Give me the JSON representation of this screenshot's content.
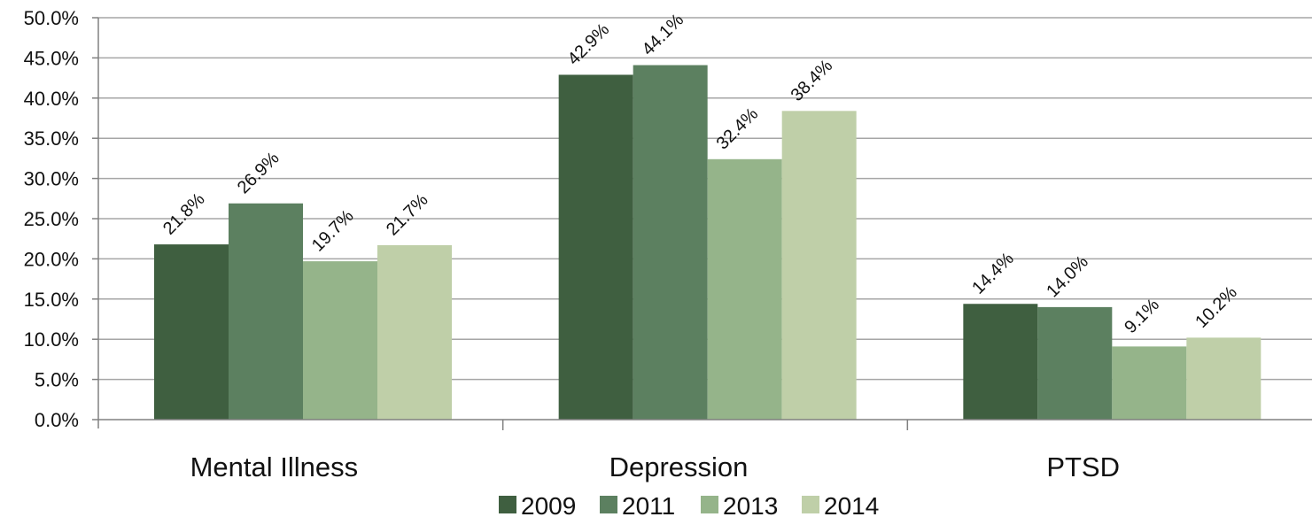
{
  "chart_data": {
    "type": "bar",
    "categories": [
      "Mental Illness",
      "Depression",
      "PTSD"
    ],
    "series": [
      {
        "name": "2009",
        "color": "#3f5f40",
        "values": [
          21.8,
          42.9,
          14.4
        ],
        "labels": [
          "21.8%",
          "42.9%",
          "14.4%"
        ]
      },
      {
        "name": "2011",
        "color": "#5c8060",
        "values": [
          26.9,
          44.1,
          14.0
        ],
        "labels": [
          "26.9%",
          "44.1%",
          "14.0%"
        ]
      },
      {
        "name": "2013",
        "color": "#95b48a",
        "values": [
          19.7,
          32.4,
          9.1
        ],
        "labels": [
          "19.7%",
          "32.4%",
          "9.1%"
        ]
      },
      {
        "name": "2014",
        "color": "#bfcfa8",
        "values": [
          21.7,
          38.4,
          10.2
        ],
        "labels": [
          "21.7%",
          "38.4%",
          "10.2%"
        ]
      }
    ],
    "yticks": [
      "0.0%",
      "5.0%",
      "10.0%",
      "15.0%",
      "20.0%",
      "25.0%",
      "30.0%",
      "35.0%",
      "40.0%",
      "45.0%",
      "50.0%"
    ],
    "ylim": [
      0,
      50
    ],
    "ystep": 5,
    "grid": true,
    "legend": "bottom-center"
  }
}
